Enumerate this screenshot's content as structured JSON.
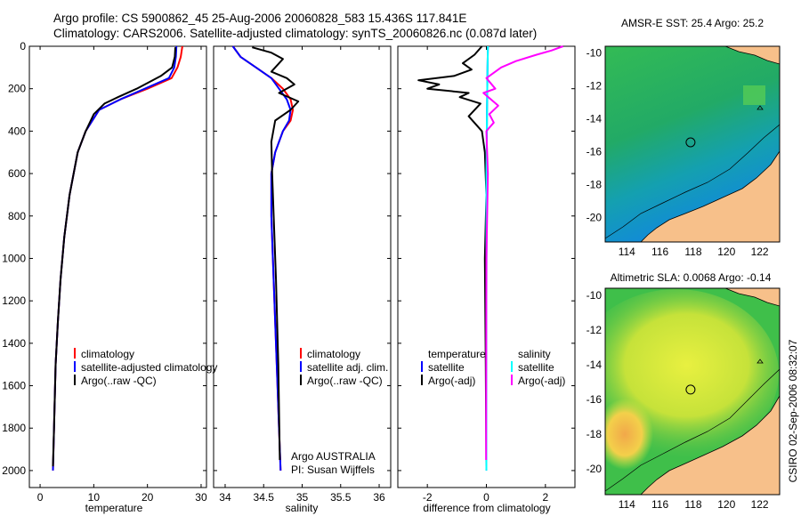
{
  "header": {
    "title_line1": "Argo profile: CS 5900862_45 25-Aug-2006 20060828_583 15.436S 117.841E",
    "title_line2": "Climatology: CARS2006. Satellite-adjusted climatology: synTS_20060826.nc (0.087d later)"
  },
  "side_label": "CSIRO 02-Sep-2006 08:32:07",
  "chart_data": [
    {
      "id": "temperature",
      "type": "line",
      "xlabel": "temperature",
      "ylabel": "",
      "xlim": [
        -2,
        31
      ],
      "ylim": [
        0,
        2080
      ],
      "y_reversed": true,
      "xticks": [
        "0",
        "10",
        "20",
        "30"
      ],
      "xtick_values": [
        0,
        10,
        20,
        30
      ],
      "yticks": [
        "0",
        "200",
        "400",
        "600",
        "800",
        "1000",
        "1200",
        "1400",
        "1600",
        "1800",
        "2000"
      ],
      "ytick_values": [
        0,
        200,
        400,
        600,
        800,
        1000,
        1200,
        1400,
        1600,
        1800,
        2000
      ],
      "legend": [
        "climatology",
        "satellite-adjusted climatology",
        "Argo(..raw -QC)"
      ],
      "series": [
        {
          "name": "climatology",
          "color": "#ff0000",
          "x": [
            26.5,
            26.2,
            25.6,
            24.5,
            20,
            15,
            11,
            8.5,
            7,
            5.5,
            4.5,
            3.8,
            3.3,
            2.9,
            2.6,
            2.4
          ],
          "y": [
            0,
            50,
            100,
            150,
            200,
            250,
            300,
            400,
            500,
            700,
            900,
            1100,
            1300,
            1500,
            1800,
            2000
          ]
        },
        {
          "name": "satellite-adjusted climatology",
          "color": "#0000ff",
          "x": [
            25.4,
            25.3,
            25.0,
            24.0,
            19.5,
            15,
            11,
            8.5,
            7,
            5.5,
            4.5,
            3.8,
            3.3,
            2.9,
            2.6,
            2.4
          ],
          "y": [
            0,
            50,
            100,
            150,
            200,
            250,
            300,
            400,
            500,
            700,
            900,
            1100,
            1300,
            1500,
            1800,
            2000
          ]
        },
        {
          "name": "Argo(..raw -QC)",
          "color": "#000000",
          "x": [
            25.2,
            25.1,
            24.6,
            22.5,
            18,
            14.5,
            12,
            10,
            8.5,
            7,
            5.5,
            4.5,
            3.8,
            3.3,
            2.9,
            2.6,
            2.4
          ],
          "y": [
            5,
            50,
            100,
            140,
            200,
            240,
            270,
            320,
            400,
            500,
            700,
            900,
            1100,
            1300,
            1500,
            1800,
            1980
          ]
        }
      ]
    },
    {
      "id": "salinity",
      "type": "line",
      "xlabel": "salinity",
      "ylabel": "",
      "xlim": [
        33.85,
        36.15
      ],
      "ylim": [
        0,
        2080
      ],
      "y_reversed": true,
      "xticks": [
        "34",
        "34.5",
        "35",
        "35.5",
        "36"
      ],
      "xtick_values": [
        34,
        34.5,
        35,
        35.5,
        36
      ],
      "legend": [
        "climatology",
        "satellite adj. clim.",
        "Argo(..raw -QC)"
      ],
      "annotation": [
        "Argo AUSTRALIA",
        "PI: Susan Wijffels"
      ],
      "series": [
        {
          "name": "climatology",
          "color": "#ff0000",
          "x": [
            34.1,
            34.2,
            34.4,
            34.6,
            34.75,
            34.85,
            34.88,
            34.85,
            34.75,
            34.65,
            34.6,
            34.6,
            34.62,
            34.65,
            34.68,
            34.7,
            34.72
          ],
          "y": [
            0,
            50,
            100,
            150,
            200,
            250,
            300,
            350,
            400,
            500,
            600,
            800,
            1000,
            1300,
            1600,
            1800,
            2000
          ]
        },
        {
          "name": "satellite adj. clim.",
          "color": "#0000ff",
          "x": [
            34.1,
            34.2,
            34.4,
            34.6,
            34.7,
            34.8,
            34.85,
            34.83,
            34.75,
            34.65,
            34.6,
            34.6,
            34.62,
            34.65,
            34.68,
            34.7,
            34.72
          ],
          "y": [
            0,
            50,
            100,
            150,
            200,
            250,
            300,
            350,
            400,
            500,
            600,
            800,
            1000,
            1300,
            1600,
            1800,
            2000
          ]
        },
        {
          "name": "Argo(..raw -QC)",
          "color": "#000000",
          "x": [
            34.35,
            34.6,
            34.75,
            34.6,
            34.8,
            34.9,
            34.7,
            34.95,
            34.85,
            34.65,
            34.6,
            34.61,
            34.63,
            34.66,
            34.69,
            34.71
          ],
          "y": [
            5,
            30,
            60,
            120,
            150,
            180,
            220,
            260,
            300,
            350,
            450,
            600,
            800,
            1100,
            1500,
            1950
          ]
        }
      ]
    },
    {
      "id": "difference",
      "type": "line",
      "xlabel": "difference from climatology",
      "ylabel": "",
      "xlim": [
        -3,
        3
      ],
      "ylim": [
        0,
        2080
      ],
      "y_reversed": true,
      "xticks": [
        "-2",
        "0",
        "2"
      ],
      "xtick_values": [
        -2,
        0,
        2
      ],
      "legend": [
        {
          "group": "temperature",
          "items": [
            "satellite",
            "Argo(-adj)"
          ]
        },
        {
          "group": "salinity",
          "items": [
            "satellite",
            "Argo(-adj)"
          ]
        }
      ],
      "series": [
        {
          "name": "temperature satellite",
          "color": "#0000ff",
          "x": [
            0.05,
            0.04,
            0.02,
            0.01,
            0.0,
            0.0
          ],
          "y": [
            0,
            100,
            300,
            600,
            1200,
            2000
          ]
        },
        {
          "name": "temperature Argo(-adj)",
          "color": "#000000",
          "x": [
            -0.15,
            -0.4,
            -0.8,
            -0.5,
            -1.1,
            -2.3,
            -1.6,
            -2.0,
            -0.6,
            -0.9,
            -0.2,
            -0.6,
            -0.15,
            -0.05,
            0.0,
            -0.05,
            -0.02,
            0.0
          ],
          "y": [
            0,
            40,
            80,
            110,
            140,
            160,
            180,
            200,
            220,
            240,
            270,
            330,
            400,
            500,
            700,
            1000,
            1500,
            1980
          ]
        },
        {
          "name": "salinity satellite",
          "color": "#00ffff",
          "x": [
            0.05,
            0.04,
            0.02,
            0.0,
            0.0,
            0.0
          ],
          "y": [
            0,
            100,
            300,
            600,
            1200,
            2000
          ]
        },
        {
          "name": "salinity Argo(-adj)",
          "color": "#ff00ff",
          "x": [
            2.6,
            2.2,
            1.7,
            1.0,
            0.5,
            0.0,
            0.3,
            -0.1,
            0.4,
            0.1,
            0.25,
            0.0,
            0.05,
            0.0,
            -0.01
          ],
          "y": [
            0,
            20,
            40,
            70,
            100,
            150,
            200,
            220,
            280,
            320,
            360,
            400,
            600,
            1000,
            1950
          ]
        }
      ]
    },
    {
      "id": "sst_map",
      "type": "heatmap",
      "title": "AMSR-E SST: 25.4 Argo: 25.2",
      "xlim": [
        112.7,
        123.2
      ],
      "ylim": [
        -21.5,
        -9.6
      ],
      "xticks": [
        "114",
        "116",
        "118",
        "120",
        "122"
      ],
      "xtick_values": [
        114,
        116,
        118,
        120,
        122
      ],
      "yticks": [
        "-10",
        "-12",
        "-14",
        "-16",
        "-18",
        "-20"
      ],
      "ytick_values": [
        -10,
        -12,
        -14,
        -16,
        -18,
        -20
      ],
      "marker": {
        "lon": 117.84,
        "lat": -15.44
      }
    },
    {
      "id": "sla_map",
      "type": "heatmap",
      "title": "Altimetric SLA: 0.0068 Argo: -0.14",
      "xlim": [
        112.7,
        123.2
      ],
      "ylim": [
        -21.5,
        -9.6
      ],
      "xticks": [
        "114",
        "116",
        "118",
        "120",
        "122"
      ],
      "xtick_values": [
        114,
        116,
        118,
        120,
        122
      ],
      "yticks": [
        "-10",
        "-12",
        "-14",
        "-16",
        "-18",
        "-20"
      ],
      "ytick_values": [
        -10,
        -12,
        -14,
        -16,
        -18,
        -20
      ],
      "marker": {
        "lon": 117.84,
        "lat": -15.44
      }
    }
  ]
}
